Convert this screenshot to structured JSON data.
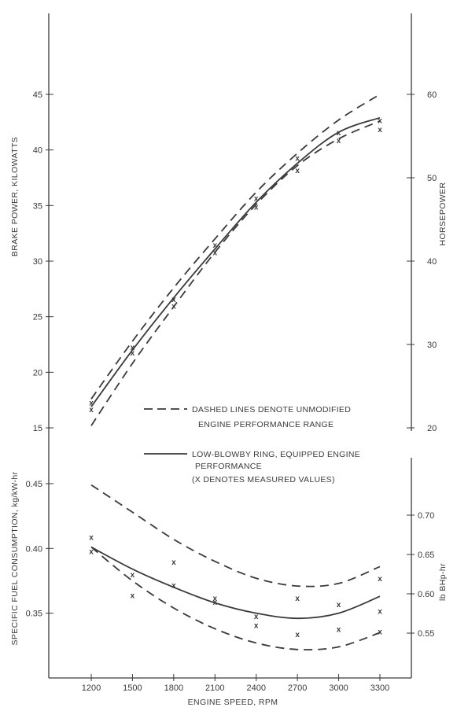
{
  "chart_data": [
    {
      "type": "line",
      "panel": "brake-power",
      "ylabel": "BRAKE POWER, KILOWATTS",
      "ylabel_right": "HORSEPOWER",
      "x": [
        1200,
        1500,
        1800,
        2100,
        2400,
        2700,
        3000,
        3300
      ],
      "ylim": [
        15,
        45
      ],
      "yticks": [
        15,
        20,
        25,
        30,
        35,
        40,
        45
      ],
      "ylim_right": [
        20,
        60
      ],
      "yticks_right": [
        20,
        30,
        40,
        50,
        60
      ],
      "series": [
        {
          "style": "dashed",
          "values": [
            17.6,
            22.8,
            27.6,
            32.0,
            36.2,
            39.7,
            42.7,
            45.0
          ]
        },
        {
          "style": "dashed",
          "values": [
            15.2,
            20.8,
            25.9,
            30.8,
            35.1,
            38.6,
            41.0,
            42.6
          ]
        },
        {
          "style": "solid",
          "values": [
            16.9,
            22.0,
            26.7,
            31.1,
            35.3,
            38.8,
            41.6,
            42.9
          ]
        }
      ],
      "measured": [
        {
          "x": 1200,
          "y": 17.3
        },
        {
          "x": 1200,
          "y": 16.7
        },
        {
          "x": 1500,
          "y": 22.3
        },
        {
          "x": 1500,
          "y": 21.8
        },
        {
          "x": 1800,
          "y": 26.6
        },
        {
          "x": 1800,
          "y": 26.0
        },
        {
          "x": 2100,
          "y": 31.5
        },
        {
          "x": 2100,
          "y": 30.8
        },
        {
          "x": 2400,
          "y": 35.7
        },
        {
          "x": 2400,
          "y": 34.9
        },
        {
          "x": 2700,
          "y": 39.3
        },
        {
          "x": 2700,
          "y": 38.2
        },
        {
          "x": 3000,
          "y": 41.6
        },
        {
          "x": 3000,
          "y": 40.9
        },
        {
          "x": 3300,
          "y": 42.7
        },
        {
          "x": 3300,
          "y": 41.9
        }
      ],
      "measured_marker": "x",
      "legend": {
        "dashed": [
          "DASHED LINES DENOTE UNMODIFIED",
          "ENGINE PERFORMANCE RANGE"
        ],
        "solid": [
          "LOW-BLOWBY RING, EQUIPPED ENGINE",
          "PERFORMANCE",
          "(X DENOTES MEASURED VALUES)"
        ]
      }
    },
    {
      "type": "line",
      "panel": "fuel-consumption",
      "xlabel": "ENGINE SPEED, RPM",
      "ylabel": "SPECIFIC FUEL CONSUMPTION, kg/kW-hr",
      "ylabel_right": "lb BHp-hr",
      "x": [
        1200,
        1500,
        1800,
        2100,
        2400,
        2700,
        3000,
        3300
      ],
      "xticks": [
        "1200",
        "1500",
        "1800",
        "2100",
        "2400",
        "2700",
        "3000",
        "3300"
      ],
      "ylim": [
        0.3,
        0.47
      ],
      "yticks": [
        "0.35",
        "0.40",
        "0.45"
      ],
      "ylim_right": [
        0.493,
        0.773
      ],
      "yticks_right": [
        "0.55",
        "0.60",
        "0.65",
        "0.70"
      ],
      "series": [
        {
          "style": "dashed",
          "values": [
            0.449,
            0.428,
            0.407,
            0.39,
            0.377,
            0.371,
            0.373,
            0.386
          ]
        },
        {
          "style": "dashed",
          "values": [
            0.401,
            0.375,
            0.354,
            0.338,
            0.327,
            0.322,
            0.324,
            0.335
          ]
        },
        {
          "style": "solid",
          "values": [
            0.401,
            0.384,
            0.37,
            0.358,
            0.35,
            0.346,
            0.35,
            0.363
          ]
        }
      ],
      "measured": [
        {
          "x": 1200,
          "y": 0.409
        },
        {
          "x": 1200,
          "y": 0.398
        },
        {
          "x": 1500,
          "y": 0.38
        },
        {
          "x": 1500,
          "y": 0.364
        },
        {
          "x": 1800,
          "y": 0.39
        },
        {
          "x": 1800,
          "y": 0.372
        },
        {
          "x": 2100,
          "y": 0.362
        },
        {
          "x": 2100,
          "y": 0.359
        },
        {
          "x": 2400,
          "y": 0.348
        },
        {
          "x": 2400,
          "y": 0.341
        },
        {
          "x": 2700,
          "y": 0.362
        },
        {
          "x": 2700,
          "y": 0.334
        },
        {
          "x": 3000,
          "y": 0.357
        },
        {
          "x": 3000,
          "y": 0.338
        },
        {
          "x": 3300,
          "y": 0.377
        },
        {
          "x": 3300,
          "y": 0.352
        },
        {
          "x": 3300,
          "y": 0.336
        }
      ],
      "measured_marker": "x"
    }
  ],
  "colors": {
    "ink": "#3a3a3a",
    "background": "#ffffff"
  }
}
